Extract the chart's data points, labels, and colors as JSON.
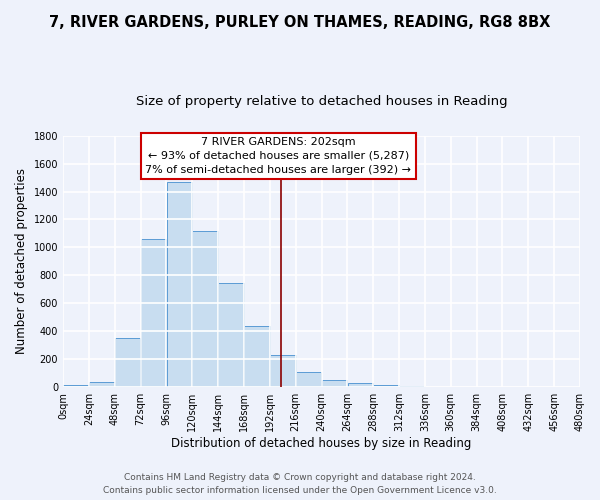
{
  "title": "7, RIVER GARDENS, PURLEY ON THAMES, READING, RG8 8BX",
  "subtitle": "Size of property relative to detached houses in Reading",
  "xlabel": "Distribution of detached houses by size in Reading",
  "ylabel": "Number of detached properties",
  "bar_color": "#c8ddf0",
  "bar_edge_color": "#5b9bd5",
  "bin_edges": [
    0,
    24,
    48,
    72,
    96,
    120,
    144,
    168,
    192,
    216,
    240,
    264,
    288,
    312,
    336,
    360,
    384,
    408,
    432,
    456,
    480
  ],
  "bar_heights": [
    15,
    35,
    355,
    1060,
    1470,
    1120,
    745,
    440,
    230,
    110,
    55,
    30,
    15,
    8,
    3,
    2,
    1,
    0,
    0,
    0
  ],
  "property_line_x": 202,
  "property_line_color": "#8b0000",
  "annotation_title": "7 RIVER GARDENS: 202sqm",
  "annotation_line1": "← 93% of detached houses are smaller (5,287)",
  "annotation_line2": "7% of semi-detached houses are larger (392) →",
  "annotation_box_color": "#ffffff",
  "annotation_box_edge": "#cc0000",
  "ylim": [
    0,
    1800
  ],
  "yticks": [
    0,
    200,
    400,
    600,
    800,
    1000,
    1200,
    1400,
    1600,
    1800
  ],
  "xtick_labels": [
    "0sqm",
    "24sqm",
    "48sqm",
    "72sqm",
    "96sqm",
    "120sqm",
    "144sqm",
    "168sqm",
    "192sqm",
    "216sqm",
    "240sqm",
    "264sqm",
    "288sqm",
    "312sqm",
    "336sqm",
    "360sqm",
    "384sqm",
    "408sqm",
    "432sqm",
    "456sqm",
    "480sqm"
  ],
  "footer_line1": "Contains HM Land Registry data © Crown copyright and database right 2024.",
  "footer_line2": "Contains public sector information licensed under the Open Government Licence v3.0.",
  "bg_color": "#eef2fb",
  "plot_bg_color": "#eef2fb",
  "grid_color": "#ffffff",
  "title_fontsize": 10.5,
  "subtitle_fontsize": 9.5,
  "axis_label_fontsize": 8.5,
  "tick_fontsize": 7,
  "annotation_fontsize": 8,
  "footer_fontsize": 6.5
}
